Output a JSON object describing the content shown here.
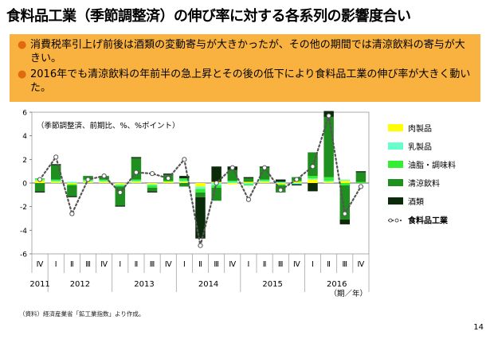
{
  "title": "食料品工業（季節調整済）の伸び率に対する各系列の影響度合い",
  "summary": [
    "消費税率引上げ前後は酒類の変動寄与が大きかったが、その他の期間では清涼飲料の寄与が大きい。",
    "2016年でも清涼飲料の年前半の急上昇とその後の低下により食料品工業の伸び率が大きく動いた。"
  ],
  "source": "（資料）経済産業省「鉱工業指数」より作成。",
  "page_number": "14",
  "colors": {
    "meat": "#ffff00",
    "dairy": "#66ffcc",
    "oils": "#33ee33",
    "soft_drinks": "#1f8f1f",
    "alcohol": "#0a2a0a",
    "total": "#555555"
  },
  "chart_data": {
    "type": "bar",
    "stacked": true,
    "unit_note": "（季節調整済、前期比、%、%ポイント）",
    "ylim": [
      -6,
      6
    ],
    "yticks": [
      "6",
      "4",
      "2",
      "0",
      "-2",
      "-4",
      "-6"
    ],
    "categories": [
      "Ⅳ",
      "Ⅰ",
      "Ⅱ",
      "Ⅲ",
      "Ⅳ",
      "Ⅰ",
      "Ⅱ",
      "Ⅲ",
      "Ⅳ",
      "Ⅰ",
      "Ⅱ",
      "Ⅲ",
      "Ⅳ",
      "Ⅰ",
      "Ⅱ",
      "Ⅲ",
      "Ⅳ",
      "Ⅰ",
      "Ⅱ",
      "Ⅲ",
      "Ⅳ"
    ],
    "years": [
      {
        "label": "2011",
        "start": 0,
        "end": 0
      },
      {
        "label": "2012",
        "start": 1,
        "end": 4
      },
      {
        "label": "2013",
        "start": 5,
        "end": 8
      },
      {
        "label": "2014",
        "start": 9,
        "end": 12
      },
      {
        "label": "2015",
        "start": 13,
        "end": 16
      },
      {
        "label": "2016",
        "start": 17,
        "end": 20
      }
    ],
    "period_label": "（期／年）",
    "series": [
      {
        "name": "肉製品",
        "key": "meat",
        "values": [
          0.2,
          0.1,
          -0.1,
          0.1,
          0.1,
          -0.1,
          0.1,
          -0.1,
          0.1,
          0.1,
          -0.3,
          0.1,
          -0.1,
          0.1,
          0.1,
          -0.1,
          0.1,
          0.3,
          0.1,
          0.2,
          0.0
        ]
      },
      {
        "name": "乳製品",
        "key": "dairy",
        "values": [
          0.1,
          0.1,
          0.1,
          0.1,
          0.1,
          -0.1,
          0.1,
          -0.1,
          0.0,
          0.1,
          -0.2,
          -0.2,
          0.1,
          -0.1,
          0.1,
          0.1,
          -0.1,
          0.1,
          0.1,
          0.1,
          0.0
        ]
      },
      {
        "name": "油脂・調味料",
        "key": "oils",
        "values": [
          0.1,
          0.1,
          -0.1,
          0.1,
          0.1,
          -0.1,
          0.1,
          -0.2,
          0.1,
          0.2,
          -0.3,
          -0.2,
          0.1,
          -0.1,
          0.1,
          -0.1,
          0.1,
          0.2,
          0.3,
          -0.2,
          0.1
        ]
      },
      {
        "name": "清涼飲料",
        "key": "soft_drinks",
        "values": [
          -0.7,
          1.2,
          -0.9,
          0.3,
          0.3,
          -1.6,
          1.8,
          -0.3,
          0.5,
          -0.3,
          -0.4,
          -1.1,
          0.9,
          0.3,
          1.0,
          -0.6,
          0.3,
          2.0,
          5.1,
          -2.9,
          0.8
        ]
      },
      {
        "name": "酒類",
        "key": "alcohol",
        "values": [
          -0.1,
          0.1,
          -0.1,
          0.0,
          0.0,
          -0.1,
          0.1,
          -0.1,
          0.1,
          0.2,
          -3.5,
          1.3,
          0.3,
          0.1,
          0.1,
          0.2,
          -0.1,
          -0.7,
          0.5,
          -0.4,
          0.1
        ]
      },
      {
        "name": "食料品工業",
        "key": "total",
        "kind": "line",
        "values": [
          0.3,
          2.2,
          -2.6,
          0.3,
          0.6,
          -0.8,
          0.9,
          0.8,
          0.4,
          2.0,
          -5.3,
          0.0,
          1.3,
          -1.4,
          1.3,
          -0.6,
          0.3,
          1.4,
          5.7,
          -2.6,
          -0.3
        ]
      }
    ]
  }
}
